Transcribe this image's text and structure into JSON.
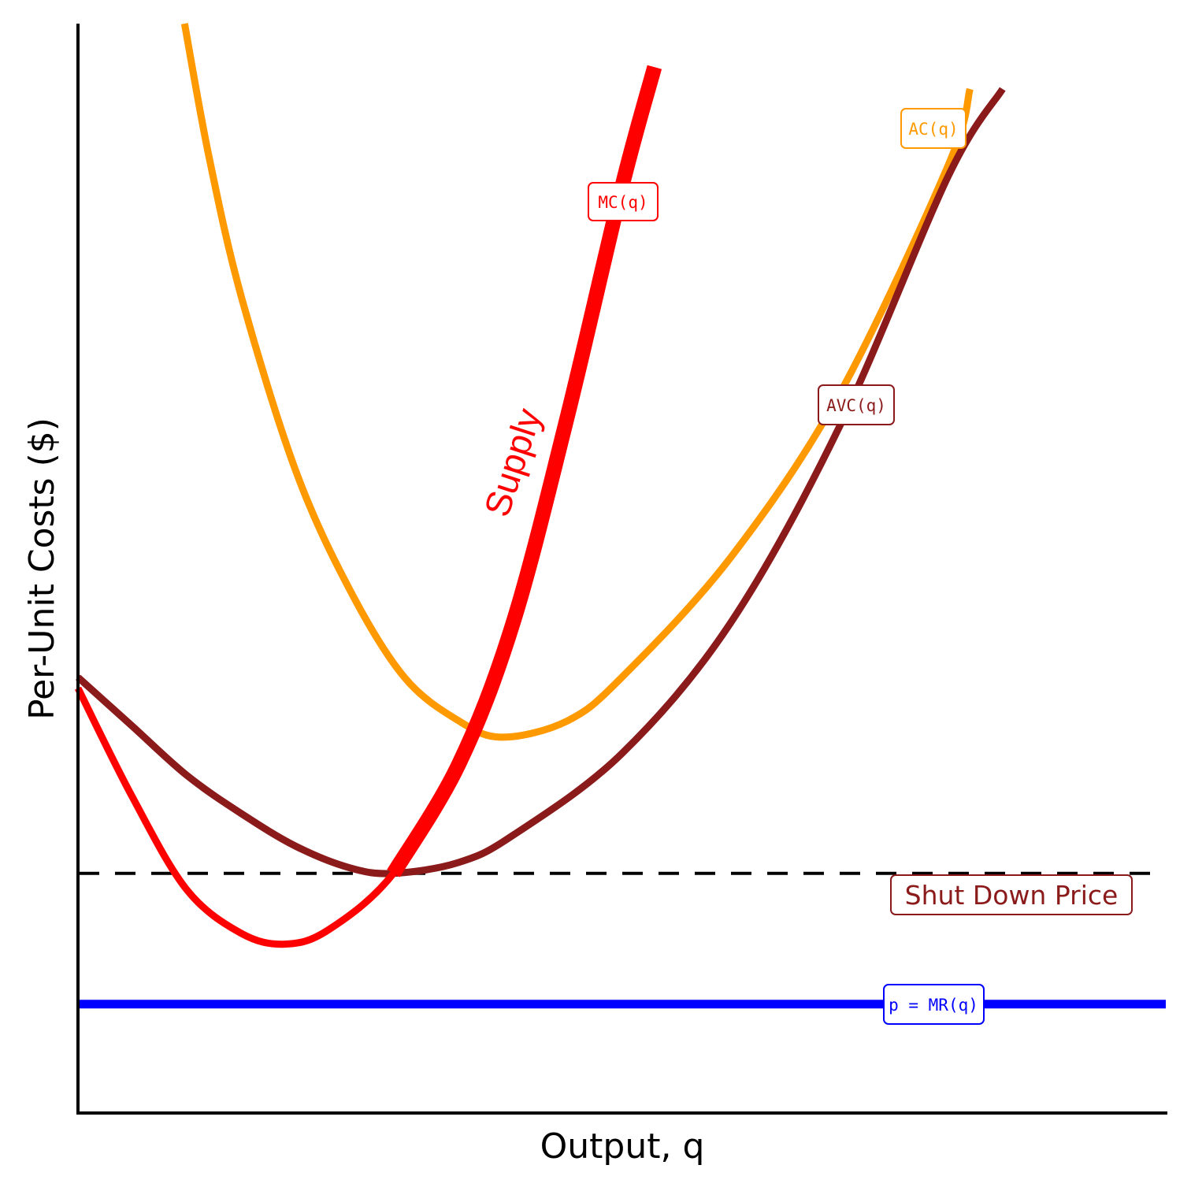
{
  "chart_data": {
    "type": "line",
    "title": "",
    "xlabel": "Output, q",
    "ylabel": "Per-Unit Costs ($)",
    "xlim": [
      0,
      10
    ],
    "ylim": [
      0,
      10
    ],
    "ticks": "none",
    "grid": false,
    "series": [
      {
        "name": "AC(q)",
        "color": "#FF9900",
        "x": [
          0.98,
          1.2,
          1.5,
          2.0,
          2.5,
          3.0,
          3.5,
          3.9,
          4.5,
          5.0,
          6.0,
          7.0,
          8.0,
          8.2
        ],
        "y": [
          10.0,
          8.8,
          7.5,
          5.9,
          4.8,
          4.0,
          3.6,
          3.45,
          3.6,
          4.0,
          5.1,
          6.6,
          8.7,
          9.4
        ]
      },
      {
        "name": "AVC(q)",
        "color": "#8B1A1A",
        "x": [
          0.0,
          0.5,
          1.0,
          1.5,
          2.0,
          2.5,
          2.9,
          3.5,
          4.0,
          5.0,
          6.0,
          7.0,
          8.0,
          8.5
        ],
        "y": [
          4.0,
          3.55,
          3.1,
          2.75,
          2.45,
          2.25,
          2.2,
          2.3,
          2.55,
          3.3,
          4.5,
          6.3,
          8.6,
          9.4
        ]
      },
      {
        "name": "MC(q)",
        "color": "#FF0000",
        "x": [
          0.0,
          0.5,
          1.0,
          1.5,
          1.9,
          2.3,
          2.9,
          3.5,
          4.0,
          4.5,
          5.0,
          5.3
        ],
        "y": [
          3.9,
          2.9,
          2.05,
          1.65,
          1.55,
          1.68,
          2.2,
          3.2,
          4.5,
          6.4,
          8.5,
          9.6
        ]
      },
      {
        "name": "p = MR(q)",
        "color": "#0000FF",
        "x": [
          0,
          10
        ],
        "y": [
          1.0,
          1.0
        ]
      }
    ],
    "shutdown_line": {
      "label": "Shut Down Price",
      "y": 2.2,
      "color": "#000000",
      "dash": true
    },
    "supply": {
      "label": "Supply",
      "color": "#FF0000",
      "from_x": 2.9
    },
    "labels": {
      "ac": "AC(q)",
      "avc": "AVC(q)",
      "mc": "MC(q)",
      "mr": "p = MR(q)",
      "shutdown": "Shut Down Price",
      "supply": "Supply"
    }
  }
}
